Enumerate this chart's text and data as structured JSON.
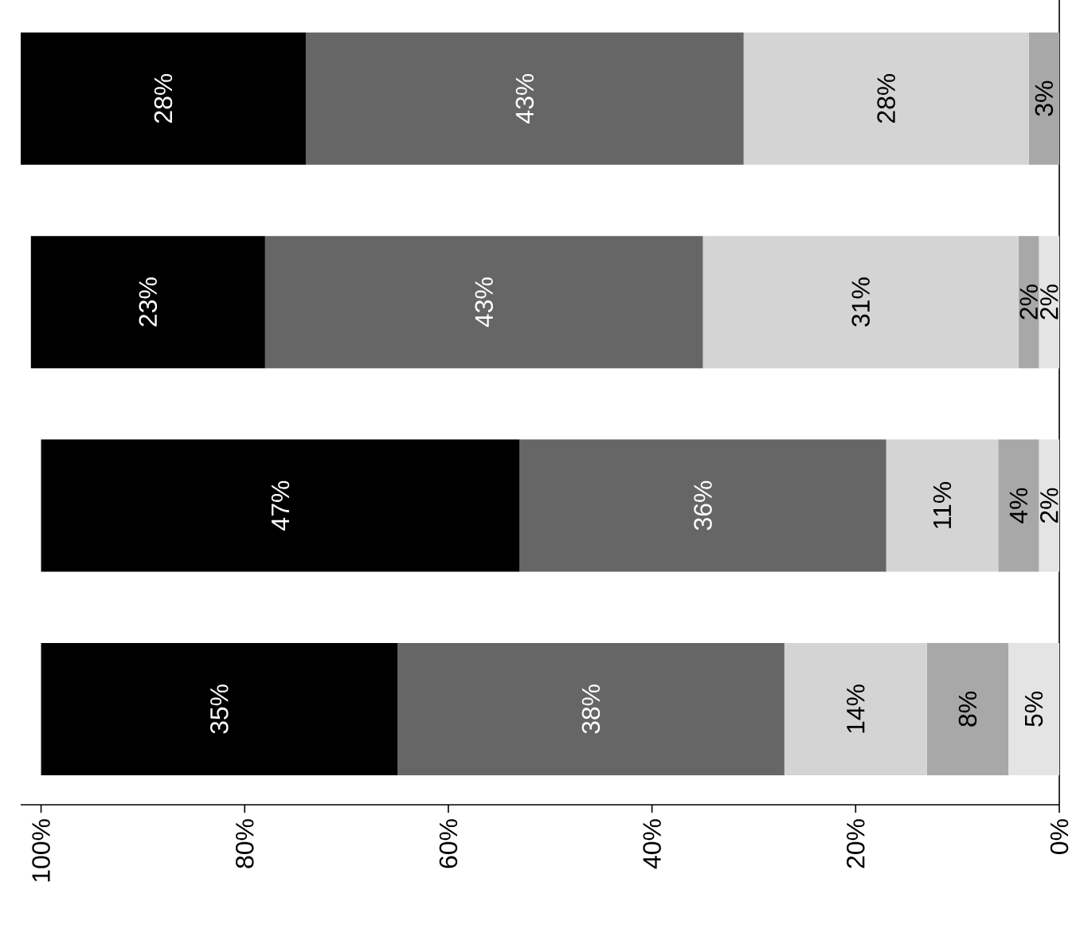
{
  "chart_data": {
    "type": "bar",
    "orientation": "horizontal",
    "stacked": true,
    "categories": [
      null,
      null,
      null,
      null
    ],
    "xlim": [
      102,
      0
    ],
    "xticks": [
      {
        "value": 100,
        "label": "100%"
      },
      {
        "value": 80,
        "label": "80%"
      },
      {
        "value": 60,
        "label": "60%"
      },
      {
        "value": 40,
        "label": "40%"
      },
      {
        "value": 20,
        "label": "20%"
      },
      {
        "value": 0,
        "label": "0%"
      }
    ],
    "series": [
      {
        "color": "#e4e4e4",
        "values": [
          null,
          2,
          2,
          5
        ],
        "value_labels": [
          null,
          "2%",
          "2%",
          "5%"
        ]
      },
      {
        "color": "#a8a8a8",
        "values": [
          3,
          2,
          4,
          8
        ],
        "value_labels": [
          "3%",
          "2%",
          "4%",
          "8%"
        ]
      },
      {
        "color": "#d4d4d4",
        "values": [
          28,
          31,
          11,
          14
        ],
        "value_labels": [
          "28%",
          "31%",
          "11%",
          "14%"
        ]
      },
      {
        "color": "#666666",
        "values": [
          43,
          43,
          36,
          38
        ],
        "value_labels": [
          "43%",
          "43%",
          "36%",
          "38%"
        ]
      },
      {
        "color": "#000000",
        "values": [
          28,
          23,
          47,
          35
        ],
        "value_labels": [
          "28%",
          "23%",
          "47%",
          "35%"
        ]
      }
    ]
  }
}
